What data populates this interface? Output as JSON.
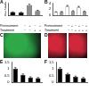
{
  "chart_data": [
    {
      "type": "bar",
      "label": "A",
      "categories": [
        null,
        null,
        null,
        null
      ],
      "values": [
        1.0,
        0.9,
        3.3,
        1.4
      ],
      "errors": [
        0.1,
        0.1,
        0.3,
        0.2
      ],
      "colors": [
        "#000000",
        "#000000",
        "#8c8c8c",
        "#8c8c8c"
      ],
      "ylim": [
        0,
        4
      ],
      "yticks": [
        0,
        1,
        2,
        3,
        4
      ],
      "grid": false,
      "tick_labels": "y",
      "rows": [
        {
          "name": "Pretreatment",
          "values": [
            "−",
            "+",
            "−",
            "+"
          ]
        },
        {
          "name": "Treatment",
          "values": [
            "−",
            "−",
            "+",
            "+"
          ]
        }
      ]
    },
    {
      "type": "bar",
      "label": "B",
      "categories": [
        null,
        null,
        null,
        null,
        null,
        null
      ],
      "values": [
        1.0,
        1.1,
        2.9,
        1.3,
        2.6,
        1.2
      ],
      "errors": [
        0.1,
        0.1,
        0.3,
        0.15,
        0.3,
        0.15
      ],
      "colors": [
        "#ffffff",
        "#999999",
        "#ffffff",
        "#999999",
        "#ffffff",
        "#999999"
      ],
      "ylim": [
        0,
        4
      ],
      "yticks": [
        0,
        2,
        4
      ],
      "grid": false,
      "tick_labels": "y",
      "rows": [
        {
          "name": "Pretreatment",
          "values": [
            "−",
            "+",
            "−",
            "+",
            "−",
            "+"
          ]
        },
        {
          "name": "Treatment",
          "values": [
            "−",
            "−",
            "+",
            "+",
            "+",
            "+"
          ]
        }
      ]
    },
    {
      "type": "bar",
      "label": "E",
      "categories": [
        null,
        null,
        null,
        null
      ],
      "values": [
        1.0,
        0.55,
        0.35,
        0.3
      ],
      "errors": [
        0.08,
        0.06,
        0.05,
        0.05
      ],
      "colors": [
        "#000000",
        "#000000",
        "#000000",
        "#000000"
      ],
      "ylim": [
        0,
        1.5
      ],
      "yticks": [
        0,
        0.5,
        1,
        1.5
      ],
      "grid": false,
      "tick_labels": "y"
    },
    {
      "type": "bar",
      "label": "F",
      "categories": [
        null,
        null,
        null,
        null
      ],
      "values": [
        1.0,
        0.6,
        0.4,
        0.3
      ],
      "errors": [
        0.08,
        0.06,
        0.05,
        0.05
      ],
      "colors": [
        "#000000",
        "#000000",
        "#000000",
        "#000000"
      ],
      "ylim": [
        0,
        1.5
      ],
      "yticks": [
        0,
        0.5,
        1,
        1.5
      ],
      "grid": false,
      "tick_labels": "y"
    }
  ],
  "images": [
    {
      "label": "C",
      "panels": [
        {
          "color": "#2fa84a"
        }
      ]
    },
    {
      "label": "D",
      "panels": [
        {
          "color": "#d0283a"
        },
        {
          "color": "#d0283a"
        }
      ]
    }
  ]
}
